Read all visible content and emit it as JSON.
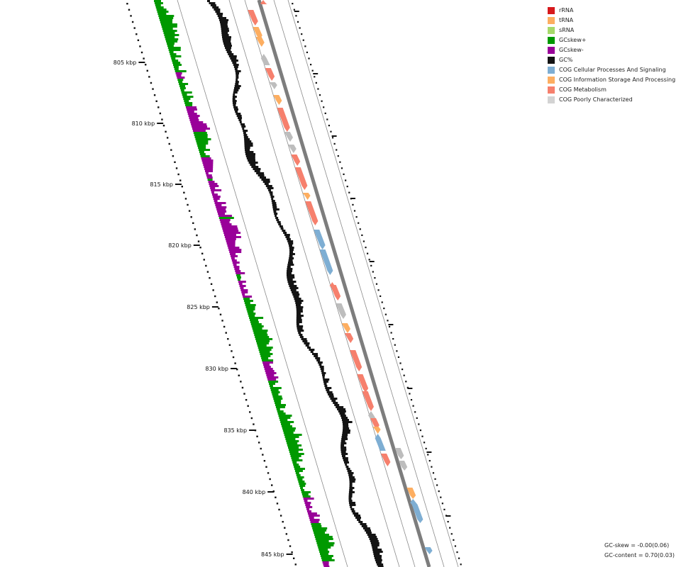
{
  "legend": {
    "items": [
      {
        "label": "rRNA",
        "color": "#d7191c"
      },
      {
        "label": "tRNA",
        "color": "#fdae61"
      },
      {
        "label": "sRNA",
        "color": "#a6d96a"
      },
      {
        "label": "GCskew+",
        "color": "#009900"
      },
      {
        "label": "GCskew-",
        "color": "#990099"
      },
      {
        "label": "GC%",
        "color": "#141414"
      },
      {
        "label": "COG Cellular Processes And Signaling",
        "color": "#7eaed3"
      },
      {
        "label": "COG Information Storage And Processing",
        "color": "#fdae61"
      },
      {
        "label": "COG Metabolism",
        "color": "#f6806d"
      },
      {
        "label": "COG Poorly Characterized",
        "color": "#d3d3d3"
      }
    ]
  },
  "axis": {
    "unit": "kbp",
    "labels": [
      "805 kbp",
      "810 kbp",
      "815 kbp",
      "820 kbp",
      "825 kbp",
      "830 kbp",
      "835 kbp",
      "840 kbp",
      "845 kbp"
    ]
  },
  "stats": {
    "gc_skew": "GC-skew = -0.00(0.06)",
    "gc_content": "GC-content = 0.70(0.03)"
  },
  "features": [
    {
      "track": "inner",
      "strand": "+",
      "cog": "Metabolism"
    },
    {
      "track": "inner",
      "strand": "+",
      "cog": "Information Storage And Processing"
    },
    {
      "track": "inner",
      "strand": "+",
      "cog": "Information Storage And Processing"
    },
    {
      "track": "inner",
      "strand": "-",
      "cog": "Poorly Characterized"
    },
    {
      "track": "inner",
      "strand": "+",
      "cog": "Metabolism"
    },
    {
      "track": "inner",
      "strand": "+",
      "cog": "Poorly Characterized"
    },
    {
      "track": "inner",
      "strand": "+",
      "cog": "Information Storage And Processing"
    },
    {
      "track": "inner",
      "strand": "+",
      "cog": "Metabolism"
    },
    {
      "track": "inner",
      "strand": "+",
      "cog": "Poorly Characterized"
    },
    {
      "track": "inner",
      "strand": "+",
      "cog": "Poorly Characterized"
    },
    {
      "track": "inner",
      "strand": "+",
      "cog": "Metabolism"
    },
    {
      "track": "inner",
      "strand": "+",
      "cog": "Metabolism"
    },
    {
      "track": "inner",
      "strand": "+",
      "cog": "Information Storage And Processing"
    },
    {
      "track": "inner",
      "strand": "+",
      "cog": "Metabolism"
    },
    {
      "track": "inner",
      "strand": "+",
      "cog": "Cellular Processes And Signaling"
    },
    {
      "track": "inner",
      "strand": "+",
      "cog": "Cellular Processes And Signaling"
    },
    {
      "track": "inner",
      "strand": "-",
      "cog": "Metabolism"
    },
    {
      "track": "inner",
      "strand": "+",
      "cog": "Metabolism"
    },
    {
      "track": "inner",
      "strand": "+",
      "cog": "Poorly Characterized"
    },
    {
      "track": "inner",
      "strand": "+",
      "cog": "Information Storage And Processing"
    },
    {
      "track": "inner",
      "strand": "+",
      "cog": "Metabolism"
    },
    {
      "track": "inner",
      "strand": "+",
      "cog": "Metabolism"
    },
    {
      "track": "inner",
      "strand": "+",
      "cog": "Metabolism"
    },
    {
      "track": "inner",
      "strand": "+",
      "cog": "Metabolism"
    },
    {
      "track": "inner",
      "strand": "-",
      "cog": "Poorly Characterized"
    },
    {
      "track": "inner",
      "strand": "+",
      "cog": "Metabolism"
    },
    {
      "track": "inner",
      "strand": "+",
      "cog": "Information Storage And Processing"
    },
    {
      "track": "inner",
      "strand": "-",
      "cog": "Cellular Processes And Signaling"
    },
    {
      "track": "inner",
      "strand": "+",
      "cog": "Metabolism"
    },
    {
      "track": "outer",
      "strand": "-",
      "cog": "Metabolism"
    },
    {
      "track": "outer",
      "strand": "+",
      "cog": "Poorly Characterized"
    },
    {
      "track": "outer",
      "strand": "+",
      "cog": "Poorly Characterized"
    },
    {
      "track": "outer",
      "strand": "+",
      "cog": "Information Storage And Processing"
    },
    {
      "track": "outer",
      "strand": "-",
      "cog": "Cellular Processes And Signaling"
    },
    {
      "track": "outer",
      "strand": "+",
      "cog": "Cellular Processes And Signaling"
    },
    {
      "track": "outer",
      "strand": "+",
      "cog": "Cellular Processes And Signaling"
    },
    {
      "track": "outer",
      "strand": "-",
      "cog": "Poorly Characterized"
    }
  ]
}
